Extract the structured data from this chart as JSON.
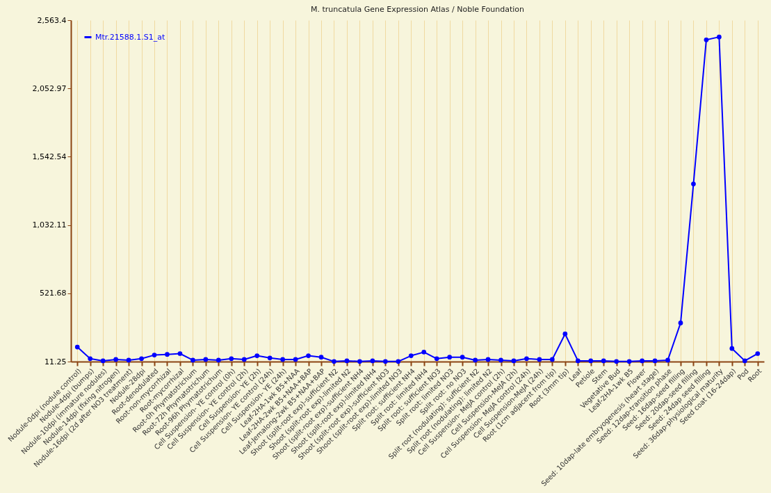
{
  "chart_data": {
    "type": "line",
    "title": "M. truncatula Gene Expression Atlas / Noble Foundation",
    "categories": [
      "Nodule-0dpi (nodule control)",
      "Nodule-4dpi (bumps)",
      "Nodule-10dpi (immature nodules)",
      "Nodule-14dpi (fixing nitrogen)",
      "Nodule-16dpi (2d after NO3 treatment)",
      "Nodule-28dpi",
      "Root-denodulated",
      "Root-non-mycorrhizal",
      "Root-mycorrhizal",
      "Root-0h Phymatotrichum",
      "Root-72h Phymatotrichum",
      "Root-96h Phymatotrichum",
      "Cell Suspension- YE control (0h)",
      "Cell Suspension- YE control (2h)",
      "Cell Suspension- YE (2h)",
      "Cell Suspension- YE control (24h)",
      "Cell Suspension- YE (24h)",
      "Leaf-2HA-1wk B5+NAA",
      "Leaf-2HA-2wk B5+NAA+BAP",
      "Leaf-Jemalong-2wk B5+NAA+BAP",
      "Shoot (split-root exp)-sufficient N2",
      "Shoot (split-root exp)-limited N2",
      "Shoot (split-root exp)-sufficient NH4",
      "Shoot (split-root exp)-limited NH4",
      "Shoot (split-root exp)-sufficient NO3",
      "Shoot (split-root exp)-limited NO3",
      "Split root: sufficient NH4",
      "Split root: limited NH4",
      "Split root: sufficient NO3",
      "Split root: limited NO3",
      "Split root: no NO3",
      "Split root (nodulating): sufficient N2",
      "Split root (nodulating): limited N2",
      "Cell Suspension- MeJA control (2h)",
      "Cell Suspension-MeJA (2h)",
      "Cell Suspension- MeJA control (24h)",
      "Cell Suspension-MeJA (24h)",
      "Root (1cm adjacent from tip)",
      "Root (3mm tip)",
      "Leaf",
      "Petiole",
      "Stem",
      "Vegetative Bud",
      "Leaf-2HA-1wk B5",
      "Flower",
      "Seed: 10dap-late embryogenesis (heart stage)",
      "Seed: 12dap-transition phase",
      "Seed: 16dap-seed filling",
      "Seed: 20dap-seed filling",
      "Seed: 24dap seed filling",
      "Seed: 36dap-physiological maturity",
      "Seed coat (16-24dap)",
      "Pod",
      "Root"
    ],
    "series": [
      {
        "name": "Mtr.21588.1.S1_at",
        "color": "#0000ff",
        "values": [
          120,
          33,
          17,
          27,
          22,
          33,
          60,
          65,
          71,
          22,
          27,
          22,
          33,
          27,
          55,
          38,
          27,
          27,
          55,
          44,
          12,
          17,
          12,
          17,
          12,
          12,
          55,
          82,
          33,
          44,
          44,
          22,
          27,
          22,
          17,
          33,
          27,
          27,
          218,
          17,
          17,
          17,
          12,
          12,
          17,
          17,
          22,
          300,
          1339,
          2416,
          2438,
          109,
          17,
          71
        ]
      }
    ],
    "ylim": [
      11.25,
      2563.4
    ],
    "yticks": [
      11.25,
      521.68,
      {
        "value": 1032.11,
        "label": "1,032.11"
      },
      {
        "value": 1542.54,
        "label": "1,542.54"
      },
      {
        "value": 2052.97,
        "label": "2,052.97"
      },
      {
        "value": 2563.4,
        "label": "2,563.4"
      }
    ],
    "grid": "x",
    "legend": "top left",
    "marker": "circle",
    "line_style": "solid"
  }
}
